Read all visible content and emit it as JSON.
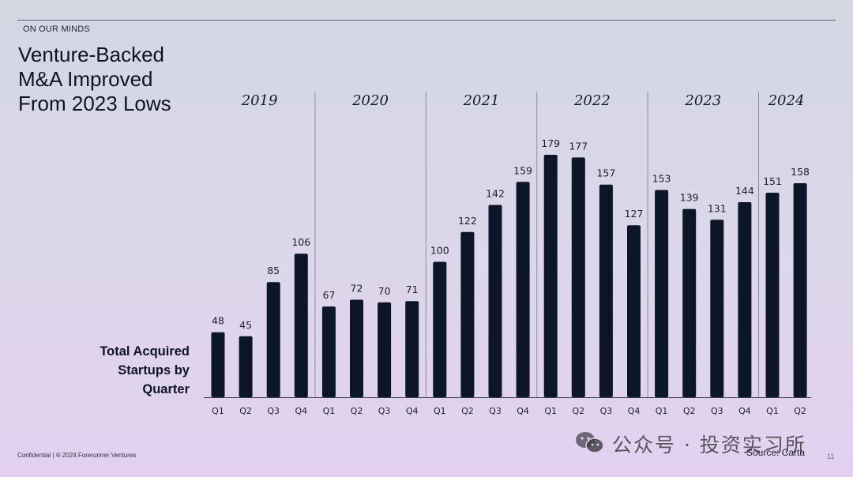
{
  "kicker": "ON OUR MINDS",
  "title_lines": [
    "Venture-Backed",
    "M&A Improved",
    "From 2023 Lows"
  ],
  "ylabel_lines": [
    "Total Acquired",
    "Startups by",
    "Quarter"
  ],
  "footer": {
    "confidential": "Confidential | ® 2024 Forerunner Ventures",
    "source": "Source: Carta",
    "page_number": "11"
  },
  "watermark": {
    "text": "公众号 · 投资实习所",
    "icon": "wechat-icon"
  },
  "colors": {
    "bar": "#0d1629",
    "divider": "#8a8e9c",
    "axis": "#3a3f4c"
  },
  "chart_data": {
    "type": "bar",
    "title": "Venture-Backed M&A Improved From 2023 Lows",
    "ylabel": "Total Acquired Startups by Quarter",
    "xlabel": "",
    "ylim": [
      0,
      179
    ],
    "grid": false,
    "legend": "none",
    "years": [
      {
        "year": "2019",
        "quarters": [
          "Q1",
          "Q2",
          "Q3",
          "Q4"
        ],
        "values": [
          48,
          45,
          85,
          106
        ]
      },
      {
        "year": "2020",
        "quarters": [
          "Q1",
          "Q2",
          "Q3",
          "Q4"
        ],
        "values": [
          67,
          72,
          70,
          71
        ]
      },
      {
        "year": "2021",
        "quarters": [
          "Q1",
          "Q2",
          "Q3",
          "Q4"
        ],
        "values": [
          100,
          122,
          142,
          159
        ]
      },
      {
        "year": "2022",
        "quarters": [
          "Q1",
          "Q2",
          "Q3",
          "Q4"
        ],
        "values": [
          179,
          177,
          157,
          127
        ]
      },
      {
        "year": "2023",
        "quarters": [
          "Q1",
          "Q2",
          "Q3",
          "Q4"
        ],
        "values": [
          153,
          139,
          131,
          144
        ]
      },
      {
        "year": "2024",
        "quarters": [
          "Q1",
          "Q2"
        ],
        "values": [
          151,
          158
        ]
      }
    ]
  }
}
